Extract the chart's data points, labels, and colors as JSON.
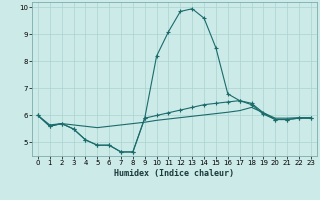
{
  "xlabel": "Humidex (Indice chaleur)",
  "bg_color": "#cceae8",
  "grid_color": "#aad4d0",
  "line_color": "#1a6b6b",
  "x_values": [
    0,
    1,
    2,
    3,
    4,
    5,
    6,
    7,
    8,
    9,
    10,
    11,
    12,
    13,
    14,
    15,
    16,
    17,
    18,
    19,
    20,
    21,
    22,
    23
  ],
  "line1": [
    6.0,
    5.6,
    5.7,
    5.5,
    5.1,
    4.9,
    4.9,
    4.65,
    4.65,
    5.9,
    8.2,
    9.1,
    9.85,
    9.95,
    9.6,
    8.5,
    6.8,
    6.55,
    6.4,
    6.05,
    5.85,
    5.85,
    5.9,
    5.9
  ],
  "line2": [
    6.0,
    5.6,
    5.7,
    5.5,
    5.1,
    4.9,
    4.9,
    4.65,
    4.65,
    5.9,
    6.0,
    6.1,
    6.2,
    6.3,
    6.4,
    6.45,
    6.5,
    6.55,
    6.45,
    6.1,
    5.85,
    5.85,
    5.9,
    5.9
  ],
  "line3": [
    6.0,
    5.65,
    5.7,
    5.65,
    5.6,
    5.55,
    5.6,
    5.65,
    5.7,
    5.75,
    5.82,
    5.87,
    5.92,
    5.97,
    6.02,
    6.07,
    6.12,
    6.18,
    6.3,
    6.1,
    5.9,
    5.9,
    5.92,
    5.92
  ],
  "ylim": [
    4.5,
    10.2
  ],
  "xlim": [
    -0.5,
    23.5
  ],
  "yticks": [
    5,
    6,
    7,
    8,
    9,
    10
  ],
  "xticks": [
    0,
    1,
    2,
    3,
    4,
    5,
    6,
    7,
    8,
    9,
    10,
    11,
    12,
    13,
    14,
    15,
    16,
    17,
    18,
    19,
    20,
    21,
    22,
    23
  ]
}
